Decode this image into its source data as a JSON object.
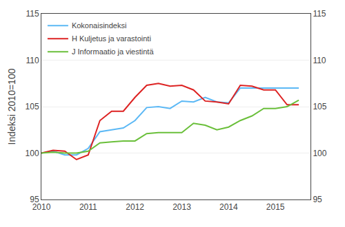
{
  "chart_data": {
    "type": "line",
    "ylabel": "Indeksi 2010=100",
    "x": [
      2010.0,
      2010.25,
      2010.5,
      2010.75,
      2011.0,
      2011.25,
      2011.5,
      2011.75,
      2012.0,
      2012.25,
      2012.5,
      2012.75,
      2013.0,
      2013.25,
      2013.5,
      2013.75,
      2014.0,
      2014.25,
      2014.5,
      2014.75,
      2015.0,
      2015.25,
      2015.5
    ],
    "series": [
      {
        "name": "Kokonaisindeksi",
        "color": "#5bb8f5",
        "values": [
          100.0,
          100.2,
          99.8,
          99.8,
          100.5,
          102.3,
          102.5,
          102.7,
          103.5,
          104.9,
          105.0,
          104.8,
          105.6,
          105.5,
          106.0,
          105.5,
          105.4,
          107.0,
          107.0,
          107.0,
          107.0,
          107.0,
          107.0
        ]
      },
      {
        "name": "H Kuljetus ja varastointi",
        "color": "#dd2222",
        "values": [
          100.0,
          100.3,
          100.2,
          99.3,
          99.8,
          103.5,
          104.5,
          104.5,
          106.0,
          107.3,
          107.5,
          107.2,
          107.3,
          106.8,
          105.6,
          105.5,
          105.3,
          107.3,
          107.2,
          106.8,
          106.8,
          105.2,
          105.2
        ]
      },
      {
        "name": "J Informaatio ja viestintä",
        "color": "#6abf3a",
        "values": [
          100.0,
          100.1,
          100.0,
          100.0,
          100.2,
          101.1,
          101.2,
          101.3,
          101.3,
          102.1,
          102.2,
          102.2,
          102.2,
          103.2,
          103.0,
          102.5,
          102.8,
          103.5,
          104.0,
          104.8,
          104.8,
          105.0,
          105.7
        ]
      }
    ],
    "xlim": [
      2010.0,
      2015.75
    ],
    "xticks": [
      2010,
      2011,
      2012,
      2013,
      2014,
      2015
    ],
    "ylim": [
      95,
      115
    ],
    "yticks": [
      95,
      100,
      105,
      110,
      115
    ],
    "y2lim": [
      95,
      115
    ],
    "y2ticks": [
      95,
      100,
      105,
      110,
      115
    ],
    "grid": true,
    "legend": "upper left"
  }
}
